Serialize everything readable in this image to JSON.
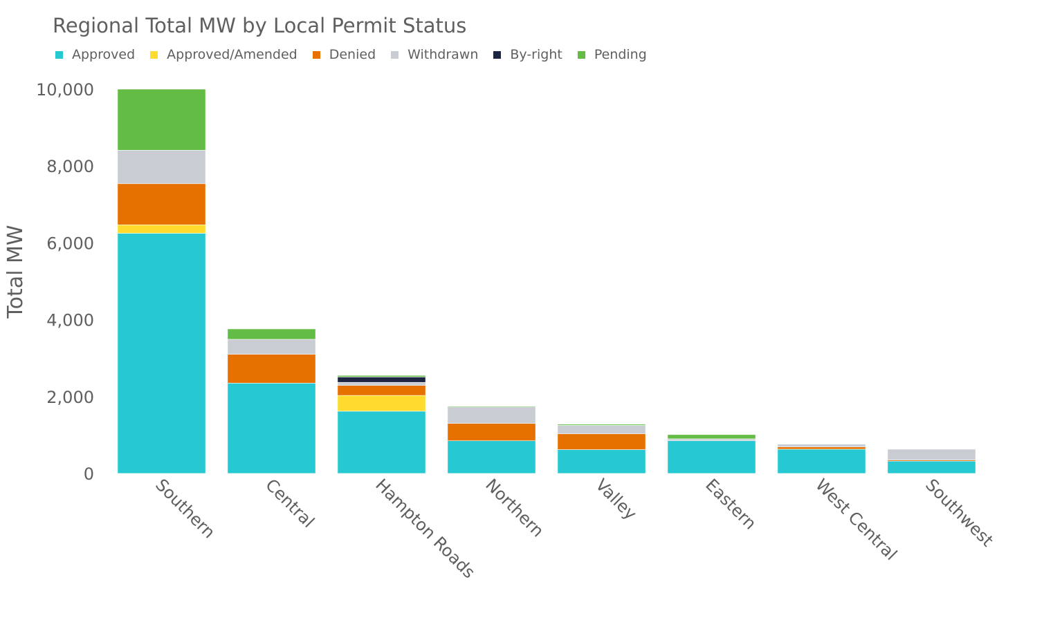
{
  "chart_data": {
    "type": "bar",
    "stacked": true,
    "title": "Regional Total MW by Local Permit Status",
    "xlabel": "",
    "ylabel": "Total MW",
    "ylim": [
      0,
      10000
    ],
    "yticks": [
      0,
      2000,
      4000,
      6000,
      8000,
      10000
    ],
    "ytick_labels": [
      "0",
      "2,000",
      "4,000",
      "6,000",
      "8,000",
      "10,000"
    ],
    "legend_position": "top-left",
    "grid": false,
    "categories": [
      "Southern",
      "Central",
      "Hampton Roads",
      "Northern",
      "Valley",
      "Eastern",
      "West Central",
      "Southwest"
    ],
    "series": [
      {
        "name": "Approved",
        "color": "#26c9d2",
        "values": [
          6250,
          2350,
          1620,
          850,
          620,
          850,
          630,
          320
        ]
      },
      {
        "name": "Approved/Amended",
        "color": "#fedb2c",
        "values": [
          220,
          0,
          410,
          0,
          0,
          0,
          0,
          0
        ]
      },
      {
        "name": "Denied",
        "color": "#e67100",
        "values": [
          1070,
          750,
          260,
          450,
          410,
          0,
          60,
          30
        ]
      },
      {
        "name": "Withdrawn",
        "color": "#c9ccd3",
        "values": [
          870,
          390,
          80,
          430,
          220,
          50,
          70,
          280
        ]
      },
      {
        "name": "By-right",
        "color": "#1c2541",
        "values": [
          0,
          0,
          140,
          0,
          0,
          0,
          0,
          0
        ]
      },
      {
        "name": "Pending",
        "color": "#63bc46",
        "values": [
          1590,
          270,
          40,
          20,
          30,
          110,
          0,
          0
        ]
      }
    ]
  }
}
